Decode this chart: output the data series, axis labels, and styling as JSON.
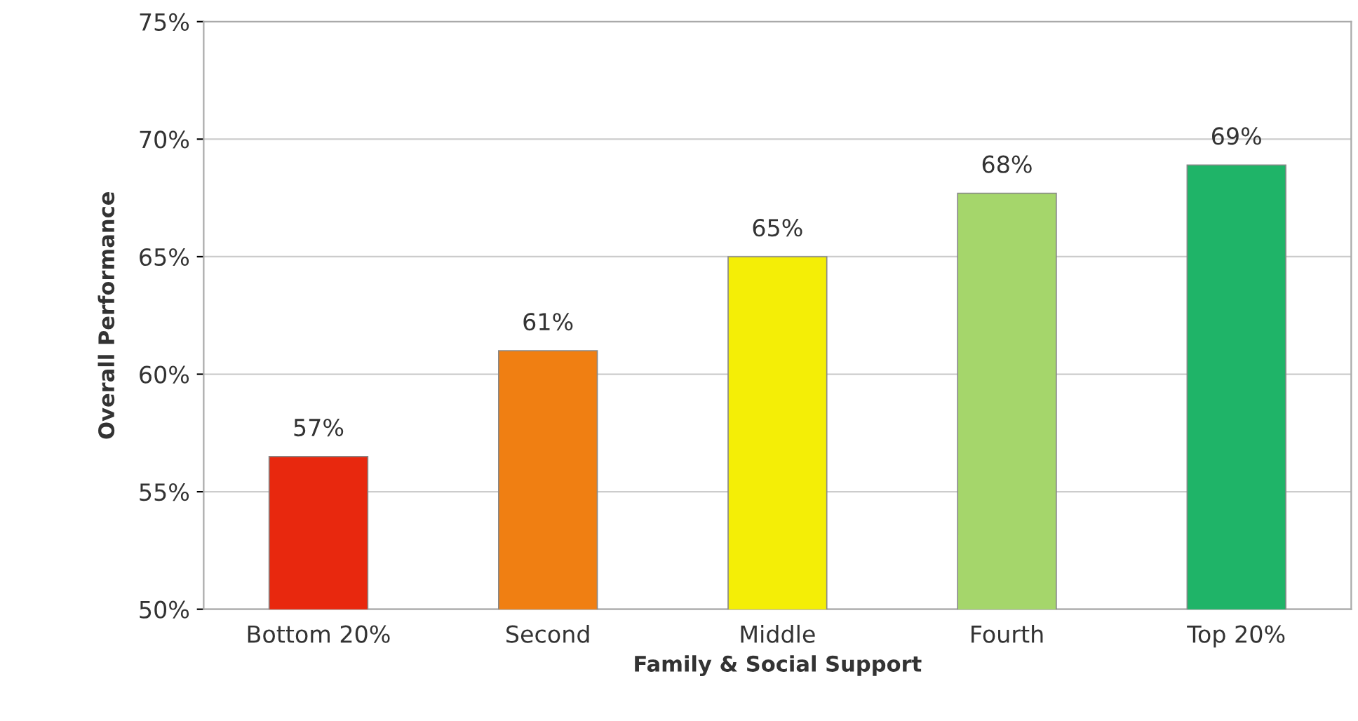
{
  "chart_data": {
    "type": "bar",
    "xlabel": "Family & Social Support",
    "ylabel": "Overall Performance",
    "categories": [
      "Bottom 20%",
      "Second",
      "Middle",
      "Fourth",
      "Top 20%"
    ],
    "values": [
      56.5,
      61.0,
      65.0,
      67.7,
      68.9
    ],
    "value_labels": [
      "57%",
      "61%",
      "65%",
      "68%",
      "69%"
    ],
    "colors": [
      "#e8280e",
      "#f07f12",
      "#f4ee06",
      "#a5d66b",
      "#1fb468"
    ],
    "ylim": [
      50,
      75
    ],
    "yticks": [
      {
        "value": 50,
        "label": "50%"
      },
      {
        "value": 55,
        "label": "55%"
      },
      {
        "value": 60,
        "label": "60%"
      },
      {
        "value": 65,
        "label": "65%"
      },
      {
        "value": 70,
        "label": "70%"
      },
      {
        "value": 75,
        "label": "75%"
      }
    ],
    "grid": "y"
  }
}
